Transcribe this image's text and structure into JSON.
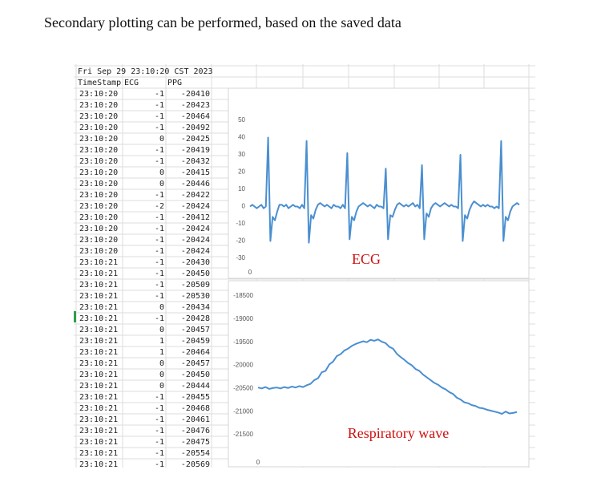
{
  "caption": "Secondary plotting can be performed, based on the saved data",
  "sheet": {
    "header": "Fri Sep 29 23:10:20 CST 2023",
    "columns": [
      "TimeStamp",
      "ECG",
      "PPG"
    ],
    "rows": [
      [
        "23:10:20",
        -1,
        -20410
      ],
      [
        "23:10:20",
        -1,
        -20423
      ],
      [
        "23:10:20",
        -1,
        -20464
      ],
      [
        "23:10:20",
        -1,
        -20492
      ],
      [
        "23:10:20",
        0,
        -20425
      ],
      [
        "23:10:20",
        -1,
        -20419
      ],
      [
        "23:10:20",
        -1,
        -20432
      ],
      [
        "23:10:20",
        0,
        -20415
      ],
      [
        "23:10:20",
        0,
        -20446
      ],
      [
        "23:10:20",
        -1,
        -20422
      ],
      [
        "23:10:20",
        -2,
        -20424
      ],
      [
        "23:10:20",
        -1,
        -20412
      ],
      [
        "23:10:20",
        -1,
        -20424
      ],
      [
        "23:10:20",
        -1,
        -20424
      ],
      [
        "23:10:20",
        -1,
        -20424
      ],
      [
        "23:10:21",
        -1,
        -20430
      ],
      [
        "23:10:21",
        -1,
        -20450
      ],
      [
        "23:10:21",
        -1,
        -20509
      ],
      [
        "23:10:21",
        -1,
        -20530
      ],
      [
        "23:10:21",
        0,
        -20434
      ],
      [
        "23:10:21",
        -1,
        -20428
      ],
      [
        "23:10:21",
        0,
        -20457
      ],
      [
        "23:10:21",
        1,
        -20459
      ],
      [
        "23:10:21",
        1,
        -20464
      ],
      [
        "23:10:21",
        0,
        -20457
      ],
      [
        "23:10:21",
        0,
        -20450
      ],
      [
        "23:10:21",
        0,
        -20444
      ],
      [
        "23:10:21",
        -1,
        -20455
      ],
      [
        "23:10:21",
        -1,
        -20468
      ],
      [
        "23:10:21",
        -1,
        -20461
      ],
      [
        "23:10:21",
        -1,
        -20476
      ],
      [
        "23:10:21",
        -1,
        -20475
      ],
      [
        "23:10:21",
        -1,
        -20554
      ],
      [
        "23:10:21",
        -1,
        -20569
      ]
    ]
  },
  "chart_data": [
    {
      "type": "line",
      "annotation": "ECG",
      "color": "#4a8fd0",
      "ylim": [
        -30,
        50
      ],
      "yticks": [
        50,
        40,
        30,
        20,
        10,
        0,
        -10,
        -20,
        -30
      ],
      "xlim": [
        0,
        119
      ],
      "xticks": [
        0
      ],
      "values": [
        0,
        1,
        0,
        -1,
        0,
        1,
        -1,
        0,
        40,
        -20,
        -6,
        -8,
        -3,
        1,
        1,
        0,
        1,
        -1,
        0,
        1,
        0,
        0,
        -1,
        1,
        -1,
        38,
        -21,
        -5,
        -7,
        -2,
        1,
        2,
        1,
        0,
        1,
        0,
        -1,
        1,
        0,
        0,
        -1,
        1,
        -1,
        31,
        -19,
        -6,
        -8,
        -3,
        0,
        1,
        2,
        1,
        0,
        1,
        0,
        -1,
        1,
        0,
        0,
        -1,
        22,
        -19,
        -5,
        -6,
        -2,
        1,
        2,
        1,
        0,
        1,
        0,
        1,
        2,
        0,
        1,
        -1,
        24,
        -19,
        -4,
        -6,
        -1,
        1,
        2,
        1,
        0,
        1,
        2,
        1,
        0,
        1,
        0,
        0,
        -1,
        30,
        -20,
        -5,
        -7,
        -2,
        1,
        3,
        2,
        1,
        0,
        1,
        0,
        1,
        0,
        0,
        -1,
        0,
        -1,
        38,
        -20,
        -6,
        -8,
        -3,
        0,
        1,
        2,
        1
      ]
    },
    {
      "type": "line",
      "annotation": "Respiratory wave",
      "color": "#4a8fd0",
      "ylim": [
        -21500,
        -18500
      ],
      "yticks": [
        -18500,
        -19000,
        -19500,
        -20000,
        -20500,
        -21000,
        -21500
      ],
      "xlim": [
        0,
        69
      ],
      "xticks": [
        0
      ],
      "values": [
        -20480,
        -20500,
        -20470,
        -20510,
        -20490,
        -20480,
        -20500,
        -20470,
        -20490,
        -20460,
        -20480,
        -20450,
        -20470,
        -20430,
        -20400,
        -20320,
        -20280,
        -20150,
        -20120,
        -19980,
        -19920,
        -19800,
        -19760,
        -19680,
        -19640,
        -19580,
        -19540,
        -19510,
        -19480,
        -19500,
        -19450,
        -19470,
        -19440,
        -19490,
        -19520,
        -19600,
        -19640,
        -19750,
        -19820,
        -19880,
        -19950,
        -20000,
        -20080,
        -20120,
        -20200,
        -20260,
        -20320,
        -20380,
        -20420,
        -20480,
        -20520,
        -20580,
        -20620,
        -20700,
        -20740,
        -20800,
        -20820,
        -20860,
        -20880,
        -20920,
        -20930,
        -20960,
        -20980,
        -21000,
        -21020,
        -21050,
        -21000,
        -21040,
        -21030,
        -21010
      ]
    }
  ]
}
